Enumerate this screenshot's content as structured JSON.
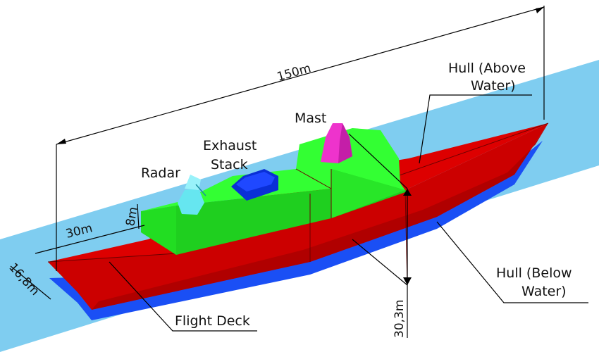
{
  "labels": {
    "mast": "Mast",
    "exhaust_line1": "Exhaust",
    "exhaust_line2": "Stack",
    "radar": "Radar",
    "hull_above_line1": "Hull (Above",
    "hull_above_line2": "Water)",
    "hull_below_line1": "Hull (Below",
    "hull_below_line2": "Water)",
    "flight_deck": "Flight Deck"
  },
  "dimensions": {
    "length": "150m",
    "deck_length": "30m",
    "superstructure_height": "8m",
    "beam": "16,8m",
    "height": "30,3m"
  },
  "colors": {
    "water": "#7fcdf0",
    "hull_above": "#d40000",
    "hull_below": "#1a4ff5",
    "superstructure": "#22ee22",
    "mast": "#ee33cc",
    "exhaust": "#0a2fd6",
    "radar": "#66e6f0"
  }
}
